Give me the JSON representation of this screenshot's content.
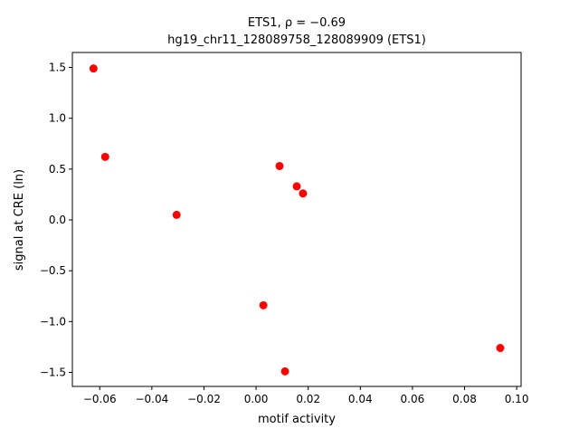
{
  "chart_data": {
    "type": "scatter",
    "title": "ETS1, ρ = −0.69",
    "subtitle": "hg19_chr11_128089758_128089909 (ETS1)",
    "xlabel": "motif activity",
    "ylabel": "signal at CRE (ln)",
    "color": "#ff0000",
    "x": [
      -0.0624,
      -0.0579,
      -0.0305,
      0.009,
      0.0156,
      0.018,
      0.0028,
      0.0111,
      0.0937
    ],
    "values": [
      1.49,
      0.62,
      0.05,
      0.53,
      0.33,
      0.26,
      -0.84,
      -1.49,
      -1.26
    ],
    "xlim": [
      -0.0705,
      0.1017
    ],
    "ylim": [
      -1.638,
      1.647
    ],
    "xticks": [
      {
        "value": -0.06,
        "label": "−0.06"
      },
      {
        "value": -0.04,
        "label": "−0.04"
      },
      {
        "value": -0.02,
        "label": "−0.02"
      },
      {
        "value": 0,
        "label": "0.00"
      },
      0.02,
      0.04,
      0.06,
      0.08,
      {
        "value": 0.1,
        "label": "0.10"
      }
    ],
    "yticks": [
      {
        "value": -1.5,
        "label": "−1.5"
      },
      {
        "value": -1,
        "label": "−1.0"
      },
      {
        "value": -0.5,
        "label": "−0.5"
      },
      {
        "value": 0,
        "label": "0.0"
      },
      0.5,
      {
        "value": 1,
        "label": "1.0"
      },
      1.5
    ]
  }
}
